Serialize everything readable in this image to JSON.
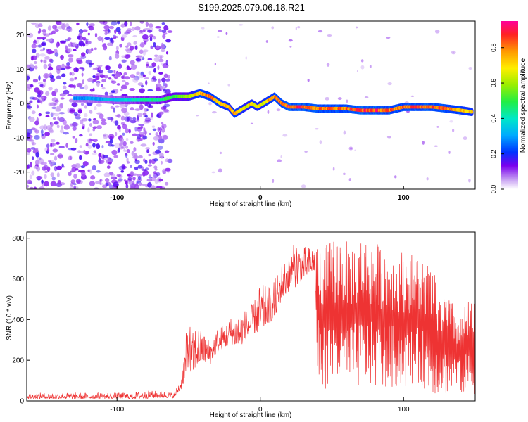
{
  "title": "S199.2025.079.06.18.R21",
  "colors": {
    "snr_line": "#ee3333",
    "frame": "#000000"
  },
  "chart_data": [
    {
      "type": "heatmap",
      "xlabel": "Height of straight line (km)",
      "ylabel": "Frequency (Hz)",
      "xlim": [
        -163,
        150
      ],
      "ylim": [
        -25,
        24
      ],
      "xticks": [
        -100,
        0,
        100
      ],
      "yticks": [
        -20,
        -10,
        0,
        10,
        20
      ],
      "colorbar": {
        "label": "Normalized spectral amplitude",
        "range": [
          0,
          0.95
        ],
        "ticks": [
          0.0,
          0.2,
          0.4,
          0.6,
          0.8
        ]
      },
      "ridge": {
        "x": [
          -130,
          -120,
          -100,
          -90,
          -80,
          -70,
          -60,
          -50,
          -42,
          -35,
          -28,
          -22,
          -18,
          -14,
          -10,
          -6,
          -2,
          2,
          6,
          10,
          15,
          20,
          30,
          40,
          50,
          60,
          70,
          80,
          90,
          100,
          110,
          120,
          130,
          140,
          148
        ],
        "freq": [
          1.5,
          1.5,
          1,
          1,
          1,
          1,
          2,
          2,
          3,
          2,
          0,
          -1,
          -3,
          -2,
          -1,
          0,
          -1,
          0,
          1,
          2,
          0,
          -1,
          -1,
          -1.5,
          -1.5,
          -1.5,
          -2,
          -2,
          -2,
          -1,
          -1,
          -1,
          -1.5,
          -2,
          -2.5
        ]
      },
      "ridge_amplitude": [
        0.3,
        0.3,
        0.35,
        0.4,
        0.45,
        0.45,
        0.55,
        0.6,
        0.8,
        0.85,
        0.8,
        0.75,
        0.8,
        0.75,
        0.7,
        0.75,
        0.75,
        0.7,
        0.8,
        0.85,
        0.85,
        0.9,
        0.9,
        0.85,
        0.85,
        0.85,
        0.9,
        0.9,
        0.85,
        0.85,
        0.9,
        0.9,
        0.85,
        0.8,
        0.75
      ]
    },
    {
      "type": "line",
      "xlabel": "Height of straight line (km)",
      "ylabel": "SNR (10 * v/v)",
      "xlim": [
        -163,
        150
      ],
      "ylim": [
        0,
        830
      ],
      "xticks": [
        -100,
        0,
        100
      ],
      "yticks": [
        0,
        200,
        400,
        600,
        800
      ],
      "series": [
        {
          "x": [
            -163,
            -140,
            -120,
            -100,
            -90,
            -80,
            -70,
            -60,
            -55,
            -50,
            -48,
            -45,
            -40,
            -35,
            -30,
            -25,
            -20,
            -15,
            -10,
            -5,
            0,
            5,
            10,
            15,
            20,
            25,
            30,
            35,
            38,
            40,
            45,
            50,
            55,
            60,
            65,
            70,
            80,
            90,
            100,
            110,
            115,
            120,
            125,
            130,
            135,
            140,
            145,
            150
          ],
          "low": [
            10,
            10,
            10,
            10,
            10,
            12,
            15,
            15,
            60,
            150,
            100,
            170,
            190,
            180,
            240,
            260,
            280,
            260,
            300,
            330,
            330,
            380,
            400,
            500,
            540,
            560,
            600,
            620,
            640,
            80,
            60,
            60,
            60,
            60,
            60,
            60,
            60,
            60,
            60,
            60,
            60,
            30,
            30,
            30,
            30,
            30,
            30,
            30
          ],
          "high": [
            40,
            40,
            40,
            40,
            40,
            50,
            50,
            40,
            120,
            450,
            320,
            380,
            340,
            300,
            360,
            380,
            420,
            450,
            450,
            480,
            580,
            560,
            600,
            680,
            720,
            800,
            760,
            760,
            760,
            800,
            760,
            800,
            830,
            800,
            780,
            820,
            780,
            760,
            740,
            720,
            700,
            650,
            560,
            520,
            480,
            420,
            500,
            480
          ]
        }
      ]
    }
  ]
}
